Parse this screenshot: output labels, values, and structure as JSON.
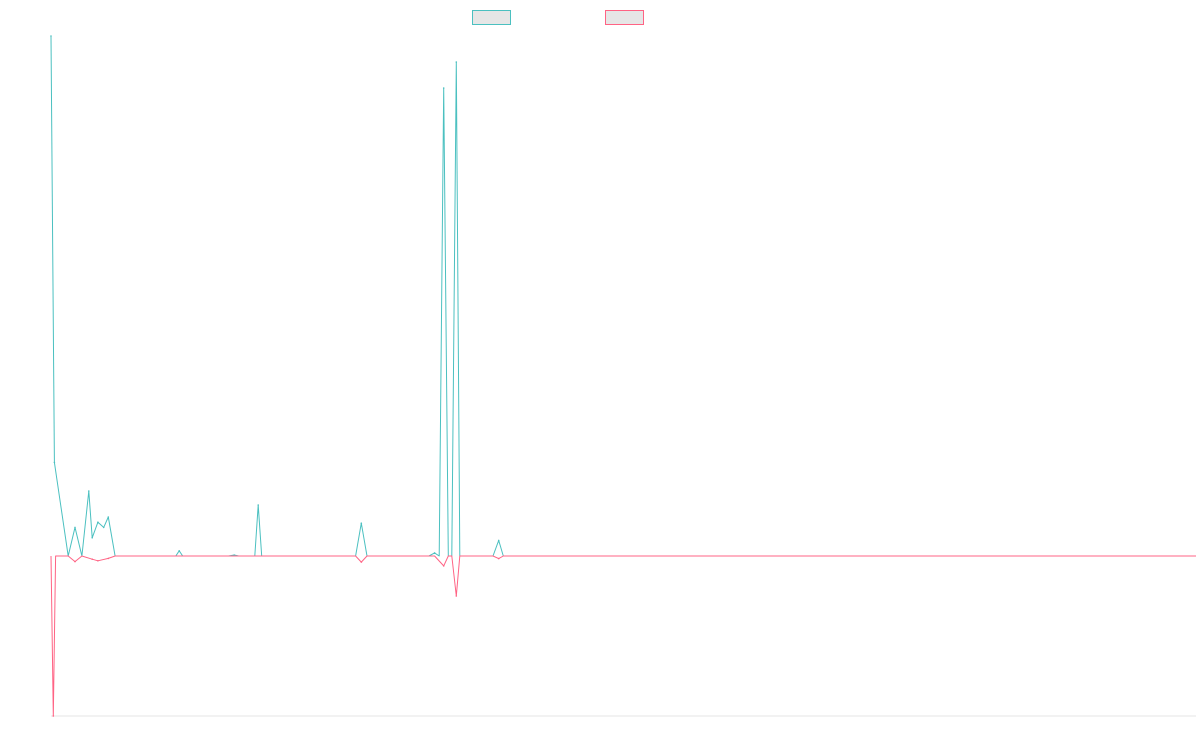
{
  "chart_data": {
    "type": "line",
    "legend_placement": "top-center",
    "grid": false,
    "x_axis_visible": false,
    "y_axis_visible": false,
    "ylim": [
      -1,
      1
    ],
    "series": [
      {
        "color": "#4bc0c0",
        "fill": "#e6e6e6",
        "points": [
          [
            0,
            1.0
          ],
          [
            0.3,
            0.18
          ],
          [
            1.5,
            0.0
          ],
          [
            2.1,
            0.055
          ],
          [
            2.7,
            0.0
          ],
          [
            3.3,
            0.125
          ],
          [
            3.6,
            0.035
          ],
          [
            4.1,
            0.065
          ],
          [
            4.6,
            0.055
          ],
          [
            5.0,
            0.075
          ],
          [
            5.6,
            0.0
          ],
          [
            7.0,
            0.0
          ],
          [
            10.9,
            0.0
          ],
          [
            11.2,
            0.01
          ],
          [
            11.5,
            0.0
          ],
          [
            15.5,
            0.0
          ],
          [
            16.0,
            0.002
          ],
          [
            16.4,
            0.0
          ],
          [
            17.8,
            0.0
          ],
          [
            18.1,
            0.098
          ],
          [
            18.4,
            0.0
          ],
          [
            25.4,
            0.0
          ],
          [
            26.6,
            0.0
          ],
          [
            27.1,
            0.063
          ],
          [
            27.6,
            0.0
          ],
          [
            33.0,
            0.0
          ],
          [
            33.5,
            0.006
          ],
          [
            33.9,
            0.0
          ],
          [
            34.3,
            0.9
          ],
          [
            34.7,
            0.0
          ],
          [
            35.0,
            0.0
          ],
          [
            35.4,
            0.95
          ],
          [
            35.7,
            0.0
          ],
          [
            38.6,
            0.0
          ],
          [
            39.1,
            0.03
          ],
          [
            39.5,
            0.0
          ],
          [
            42.0,
            0.0
          ],
          [
            100,
            0.0
          ]
        ]
      },
      {
        "color": "#ff6384",
        "fill": "#e6e6e6",
        "points": [
          [
            0,
            0.0
          ],
          [
            0.2,
            -1.0
          ],
          [
            0.4,
            0.0
          ],
          [
            1.5,
            0.0
          ],
          [
            2.1,
            -0.035
          ],
          [
            2.7,
            0.0
          ],
          [
            3.6,
            -0.02
          ],
          [
            4.1,
            -0.03
          ],
          [
            5.0,
            -0.015
          ],
          [
            5.6,
            0.0
          ],
          [
            26.6,
            0.0
          ],
          [
            27.1,
            -0.038
          ],
          [
            27.6,
            0.0
          ],
          [
            33.5,
            0.0
          ],
          [
            34.3,
            -0.062
          ],
          [
            34.7,
            0.0
          ],
          [
            35.0,
            0.0
          ],
          [
            35.4,
            -0.25
          ],
          [
            35.7,
            0.0
          ],
          [
            38.6,
            0.0
          ],
          [
            39.1,
            -0.016
          ],
          [
            39.5,
            0.0
          ],
          [
            100,
            0.0
          ]
        ]
      }
    ]
  }
}
